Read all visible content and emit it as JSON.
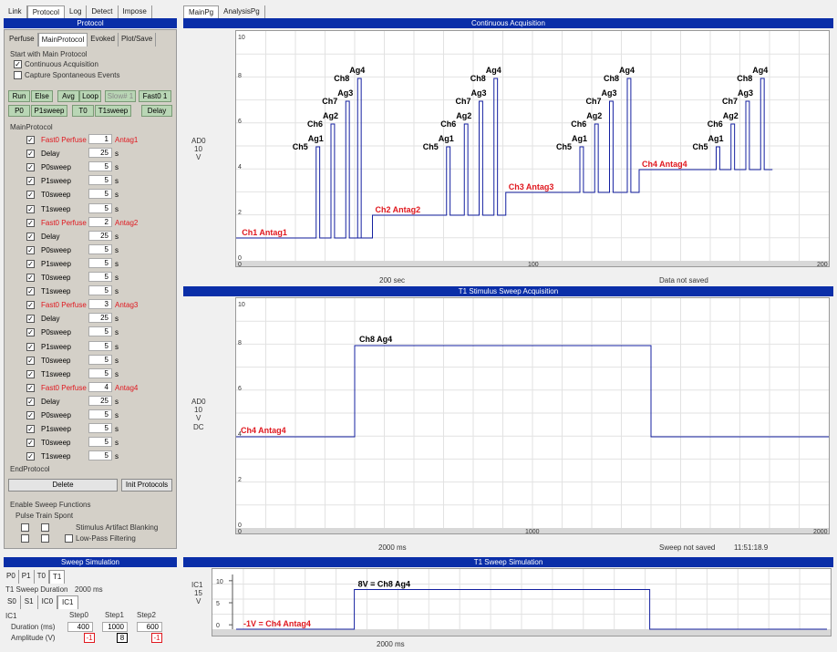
{
  "left_tabs": [
    "Link",
    "Protocol",
    "Log",
    "Detect",
    "Impose"
  ],
  "right_tabs": [
    "MainPg",
    "AnalysisPg"
  ],
  "protocol": {
    "header": "Protocol",
    "subtabs": [
      "Perfuse",
      "MainProtocol",
      "Evoked",
      "Plot/Save"
    ],
    "start_title": "Start with Main Protocol",
    "opt_continuous": "Continuous Acquisition",
    "opt_spontaneous": "Capture Spontaneous Events",
    "buttons_row1": [
      "Run",
      "Else",
      "Avg",
      "Loop",
      "Slow# 1",
      "Fast0 1"
    ],
    "buttons_row2": [
      "P0",
      "P1sweep",
      "T0",
      "T1sweep",
      "Delay"
    ],
    "list_title": "MainProtocol",
    "list_end": "EndProtocol",
    "steps": [
      {
        "name": "Fast0 Perfuse",
        "val": "1",
        "unit": "Antag1",
        "red": true
      },
      {
        "name": "Delay",
        "val": "25",
        "unit": "s",
        "red": false
      },
      {
        "name": "P0sweep",
        "val": "5",
        "unit": "s",
        "red": false
      },
      {
        "name": "P1sweep",
        "val": "5",
        "unit": "s",
        "red": false
      },
      {
        "name": "T0sweep",
        "val": "5",
        "unit": "s",
        "red": false
      },
      {
        "name": "T1sweep",
        "val": "5",
        "unit": "s",
        "red": false
      },
      {
        "name": "Fast0 Perfuse",
        "val": "2",
        "unit": "Antag2",
        "red": true
      },
      {
        "name": "Delay",
        "val": "25",
        "unit": "s",
        "red": false
      },
      {
        "name": "P0sweep",
        "val": "5",
        "unit": "s",
        "red": false
      },
      {
        "name": "P1sweep",
        "val": "5",
        "unit": "s",
        "red": false
      },
      {
        "name": "T0sweep",
        "val": "5",
        "unit": "s",
        "red": false
      },
      {
        "name": "T1sweep",
        "val": "5",
        "unit": "s",
        "red": false
      },
      {
        "name": "Fast0 Perfuse",
        "val": "3",
        "unit": "Antag3",
        "red": true
      },
      {
        "name": "Delay",
        "val": "25",
        "unit": "s",
        "red": false
      },
      {
        "name": "P0sweep",
        "val": "5",
        "unit": "s",
        "red": false
      },
      {
        "name": "P1sweep",
        "val": "5",
        "unit": "s",
        "red": false
      },
      {
        "name": "T0sweep",
        "val": "5",
        "unit": "s",
        "red": false
      },
      {
        "name": "T1sweep",
        "val": "5",
        "unit": "s",
        "red": false
      },
      {
        "name": "Fast0 Perfuse",
        "val": "4",
        "unit": "Antag4",
        "red": true
      },
      {
        "name": "Delay",
        "val": "25",
        "unit": "s",
        "red": false
      },
      {
        "name": "P0sweep",
        "val": "5",
        "unit": "s",
        "red": false
      },
      {
        "name": "P1sweep",
        "val": "5",
        "unit": "s",
        "red": false
      },
      {
        "name": "T0sweep",
        "val": "5",
        "unit": "s",
        "red": false
      },
      {
        "name": "T1sweep",
        "val": "5",
        "unit": "s",
        "red": false
      }
    ],
    "delete_btn": "Delete",
    "init_btn": "Init Protocols",
    "sweep_funcs_title": "Enable Sweep Functions",
    "sweep_funcs_cols": "Pulse  Train  Spont",
    "artifact": "Stimulus Artifact Blanking",
    "lowpass": "Low-Pass Filtering"
  },
  "sim": {
    "header": "Sweep Simulation",
    "tabs": [
      "P0",
      "P1",
      "T0",
      "T1"
    ],
    "duration_label": "T1 Sweep Duration",
    "duration_value": "2000 ms",
    "subtabs": [
      "S0",
      "S1",
      "IC0",
      "IC1"
    ],
    "ic_label": "IC1",
    "step_cols": [
      "Step0",
      "Step1",
      "Step2"
    ],
    "row_duration": "Duration (ms)",
    "row_amplitude": "Amplitude (V)",
    "durations": [
      "400",
      "1000",
      "600"
    ],
    "amplitudes": [
      "-1",
      "8",
      "-1"
    ]
  },
  "charts": {
    "continuous": {
      "header": "Continuous Acquisition",
      "ylabel": "AD0",
      "ylabel2": "10",
      "ylabel3": "V",
      "foot_left": "200 sec",
      "foot_mid": "Data not saved",
      "yticks": [
        "10",
        "8",
        "6",
        "4",
        "2",
        "0"
      ],
      "xticks": [
        "0",
        "100",
        "200"
      ]
    },
    "stimulus": {
      "header": "T1 Stimulus Sweep Acquisition",
      "ylabel": "AD0",
      "ylabel2": "10",
      "ylabel3": "V",
      "ylabel4": "DC",
      "foot_left": "2000 ms",
      "foot_mid": "Sweep not saved",
      "foot_time": "11:51:18.9",
      "yticks": [
        "10",
        "8",
        "6",
        "4",
        "2",
        "0"
      ],
      "xticks": [
        "0",
        "1000",
        "2000"
      ],
      "label_high": "Ch8  Ag4",
      "label_low": "Ch4  Antag4"
    },
    "simulation": {
      "header": "T1 Sweep Simulation",
      "ylabel": "IC1",
      "ylabel2": "15",
      "ylabel3": "V",
      "foot_left": "2000 ms",
      "yticks": [
        "10",
        "5",
        "0"
      ],
      "label_high": "8V = Ch8  Ag4",
      "label_low": "-1V = Ch4  Antag4"
    }
  },
  "chart_data": [
    {
      "type": "line",
      "title": "Continuous Acquisition",
      "xlim": [
        0,
        200
      ],
      "ylim": [
        0,
        10
      ],
      "grid": true,
      "segments": [
        {
          "antag": "Ch1  Antag1",
          "baseline": 1,
          "x0": 0,
          "x1": 40,
          "pulses": [
            {
              "x": 27,
              "y": 5,
              "ch": "Ch5",
              "ag": "Ag1"
            },
            {
              "x": 32,
              "y": 6,
              "ch": "Ch6",
              "ag": "Ag2"
            },
            {
              "x": 37,
              "y": 7,
              "ch": "Ch7",
              "ag": "Ag3"
            },
            {
              "x": 41,
              "y": 8,
              "ch": "Ch8",
              "ag": "Ag4"
            }
          ]
        },
        {
          "antag": "Ch2  Antag2",
          "baseline": 2,
          "x0": 46,
          "x1": 90,
          "pulses": [
            {
              "x": 71,
              "y": 5,
              "ch": "Ch5",
              "ag": "Ag1"
            },
            {
              "x": 77,
              "y": 6,
              "ch": "Ch6",
              "ag": "Ag2"
            },
            {
              "x": 82,
              "y": 7,
              "ch": "Ch7",
              "ag": "Ag3"
            },
            {
              "x": 87,
              "y": 8,
              "ch": "Ch8",
              "ag": "Ag4"
            }
          ]
        },
        {
          "antag": "Ch3  Antag3",
          "baseline": 3,
          "x0": 91,
          "x1": 135,
          "pulses": [
            {
              "x": 116,
              "y": 5,
              "ch": "Ch5",
              "ag": "Ag1"
            },
            {
              "x": 121,
              "y": 6,
              "ch": "Ch6",
              "ag": "Ag2"
            },
            {
              "x": 126,
              "y": 7,
              "ch": "Ch7",
              "ag": "Ag3"
            },
            {
              "x": 132,
              "y": 8,
              "ch": "Ch8",
              "ag": "Ag4"
            }
          ]
        },
        {
          "antag": "Ch4  Antag4",
          "baseline": 4,
          "x0": 136,
          "x1": 181,
          "pulses": [
            {
              "x": 162,
              "y": 5,
              "ch": "Ch5",
              "ag": "Ag1"
            },
            {
              "x": 167,
              "y": 6,
              "ch": "Ch6",
              "ag": "Ag2"
            },
            {
              "x": 172,
              "y": 7,
              "ch": "Ch7",
              "ag": "Ag3"
            },
            {
              "x": 177,
              "y": 8,
              "ch": "Ch8",
              "ag": "Ag4"
            }
          ]
        }
      ]
    },
    {
      "type": "line",
      "title": "T1 Stimulus Sweep Acquisition",
      "xlim": [
        0,
        2000
      ],
      "ylim": [
        0,
        10
      ],
      "x": [
        0,
        400,
        400,
        1400,
        1400,
        2000
      ],
      "y": [
        4,
        4,
        8,
        8,
        4,
        4
      ]
    },
    {
      "type": "line",
      "title": "T1 Sweep Simulation",
      "xlim": [
        0,
        2000
      ],
      "ylim": [
        -2,
        12
      ],
      "x": [
        0,
        400,
        400,
        1400,
        1400,
        2000
      ],
      "y": [
        -1,
        -1,
        8,
        8,
        -1,
        -1
      ]
    }
  ]
}
